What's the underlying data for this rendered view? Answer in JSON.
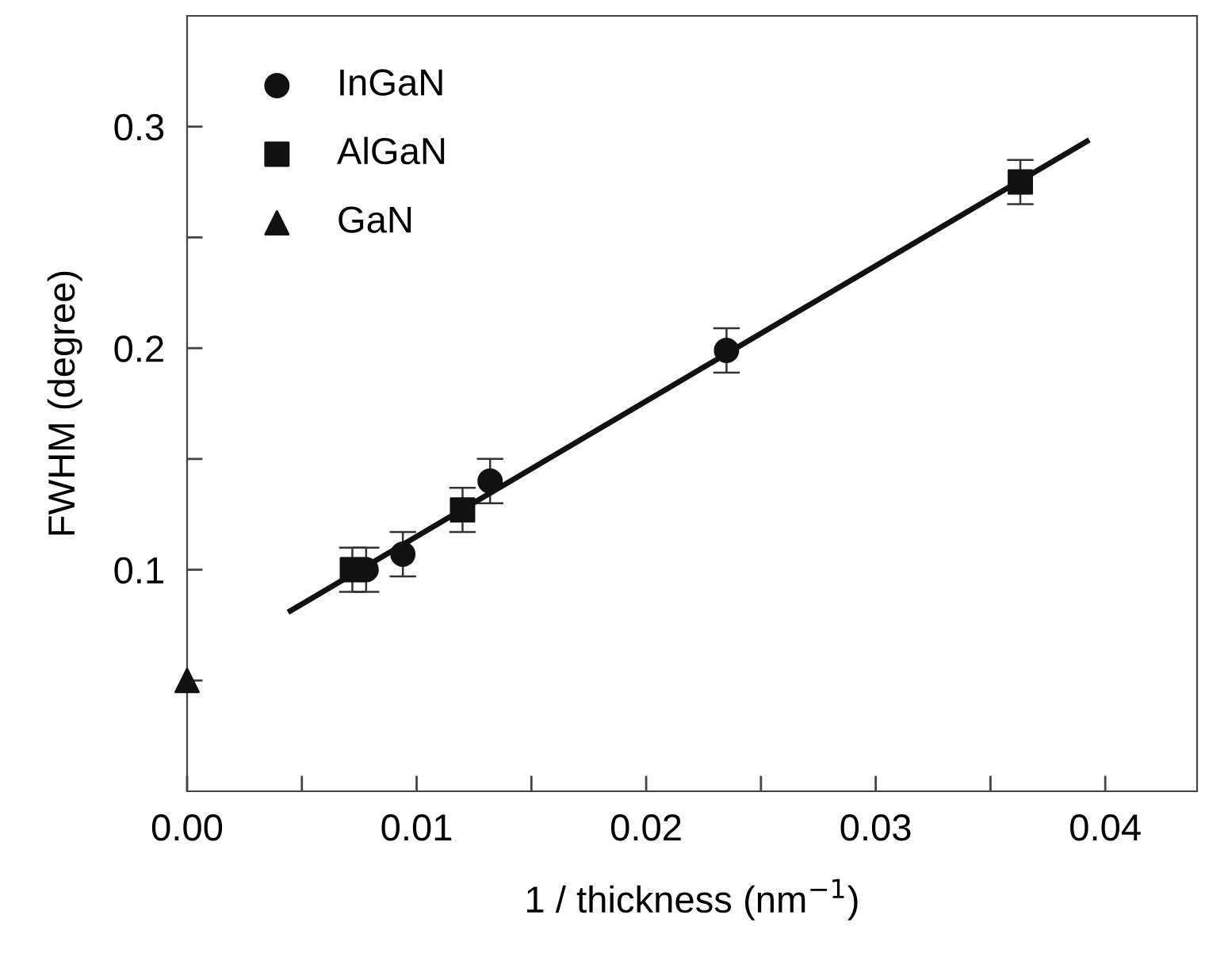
{
  "chart_data": {
    "type": "scatter",
    "xlabel": "1 / thickness (nm$^{−1}$)",
    "ylabel": "FWHM (degree)",
    "xlim": [
      0,
      0.044
    ],
    "ylim": [
      0,
      0.35
    ],
    "xticks": [
      {
        "value": 0,
        "label": "0.00"
      },
      {
        "value": 0.005,
        "label": null
      },
      {
        "value": 0.01,
        "label": "0.01"
      },
      {
        "value": 0.015,
        "label": null
      },
      {
        "value": 0.02,
        "label": "0.02"
      },
      {
        "value": 0.025,
        "label": null
      },
      {
        "value": 0.03,
        "label": "0.03"
      },
      {
        "value": 0.035,
        "label": null
      },
      {
        "value": 0.04,
        "label": "0.04"
      }
    ],
    "yticks": [
      {
        "value": 0.05,
        "label": null
      },
      0.1,
      {
        "value": 0.15,
        "label": null
      },
      0.2,
      {
        "value": 0.25,
        "label": null
      },
      0.3
    ],
    "grid": false,
    "legend": "top left",
    "series": [
      {
        "name": "InGaN",
        "color": "#111111",
        "marker": "circle",
        "x": [
          0.0078,
          0.0094,
          0.0132,
          0.0235
        ],
        "values": [
          0.1,
          0.107,
          0.14,
          0.199
        ],
        "errors": [
          0.01,
          0.01,
          0.01,
          0.01
        ]
      },
      {
        "name": "AlGaN",
        "color": "#111111",
        "marker": "square",
        "x": [
          0.0072,
          0.012,
          0.0363
        ],
        "values": [
          0.1,
          0.127,
          0.275
        ],
        "errors": [
          0.01,
          0.01,
          0.01
        ]
      },
      {
        "name": "GaN",
        "color": "#111111",
        "marker": "triangle",
        "x": [
          0
        ],
        "values": [
          0.05
        ]
      },
      {
        "type": "line",
        "color": "#111111",
        "marker": "none",
        "line_style": "solid",
        "x": [
          0.0045,
          0.0392
        ],
        "values": [
          0.0814,
          0.2934
        ]
      }
    ]
  }
}
